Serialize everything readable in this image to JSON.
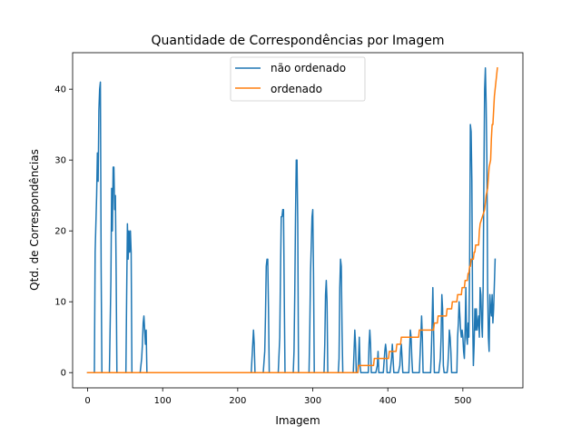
{
  "chart_data": {
    "type": "line",
    "title": "Quantidade de Correspondências por Imagem",
    "xlabel": "Imagem",
    "ylabel": "Qtd. de Correspondências",
    "xlim": [
      -20,
      580
    ],
    "ylim": [
      -2.15,
      45.15
    ],
    "xticks": [
      0,
      100,
      200,
      300,
      400,
      500
    ],
    "yticks": [
      0,
      10,
      20,
      30,
      40
    ],
    "grid": false,
    "legend_position": "upper center",
    "series": [
      {
        "name": "não ordenado",
        "color": "#1f77b4",
        "points": [
          [
            0,
            0
          ],
          [
            9,
            0
          ],
          [
            10,
            17
          ],
          [
            12,
            25
          ],
          [
            13,
            31
          ],
          [
            14,
            27
          ],
          [
            15,
            37
          ],
          [
            16,
            40
          ],
          [
            17,
            41
          ],
          [
            18,
            15
          ],
          [
            19,
            0
          ],
          [
            29,
            0
          ],
          [
            31,
            13
          ],
          [
            32,
            26
          ],
          [
            33,
            20
          ],
          [
            34,
            29
          ],
          [
            35,
            29
          ],
          [
            36,
            23
          ],
          [
            37,
            25
          ],
          [
            38,
            14
          ],
          [
            39,
            0
          ],
          [
            51,
            0
          ],
          [
            52,
            11
          ],
          [
            53,
            21
          ],
          [
            54,
            16
          ],
          [
            55,
            20
          ],
          [
            56,
            17
          ],
          [
            57,
            20
          ],
          [
            58,
            17
          ],
          [
            59,
            0
          ],
          [
            70,
            0
          ],
          [
            72,
            2
          ],
          [
            73,
            4
          ],
          [
            74,
            7
          ],
          [
            75,
            8
          ],
          [
            76,
            6
          ],
          [
            77,
            4
          ],
          [
            78,
            6
          ],
          [
            79,
            0
          ],
          [
            218,
            0
          ],
          [
            220,
            4
          ],
          [
            221,
            6
          ],
          [
            222,
            4
          ],
          [
            223,
            0
          ],
          [
            234,
            0
          ],
          [
            236,
            3
          ],
          [
            237,
            8
          ],
          [
            238,
            15
          ],
          [
            239,
            16
          ],
          [
            240,
            16
          ],
          [
            241,
            9
          ],
          [
            242,
            0
          ],
          [
            254,
            0
          ],
          [
            256,
            5
          ],
          [
            257,
            14
          ],
          [
            258,
            22
          ],
          [
            259,
            22
          ],
          [
            260,
            23
          ],
          [
            261,
            23
          ],
          [
            262,
            11
          ],
          [
            263,
            0
          ],
          [
            274,
            0
          ],
          [
            275,
            3
          ],
          [
            276,
            11
          ],
          [
            277,
            22
          ],
          [
            278,
            30
          ],
          [
            279,
            30
          ],
          [
            280,
            21
          ],
          [
            281,
            0
          ],
          [
            295,
            0
          ],
          [
            296,
            6
          ],
          [
            297,
            14
          ],
          [
            298,
            18
          ],
          [
            299,
            22
          ],
          [
            300,
            23
          ],
          [
            301,
            14
          ],
          [
            302,
            0
          ],
          [
            315,
            0
          ],
          [
            316,
            4
          ],
          [
            317,
            11
          ],
          [
            318,
            13
          ],
          [
            319,
            10
          ],
          [
            320,
            0
          ],
          [
            334,
            0
          ],
          [
            335,
            2
          ],
          [
            336,
            12
          ],
          [
            337,
            16
          ],
          [
            338,
            15
          ],
          [
            339,
            6
          ],
          [
            340,
            0
          ],
          [
            354,
            0
          ],
          [
            355,
            3
          ],
          [
            356,
            6
          ],
          [
            357,
            4
          ],
          [
            358,
            0
          ],
          [
            360,
            0
          ],
          [
            361,
            2
          ],
          [
            362,
            5
          ],
          [
            363,
            1
          ],
          [
            364,
            0
          ],
          [
            374,
            0
          ],
          [
            375,
            4
          ],
          [
            376,
            6
          ],
          [
            377,
            4
          ],
          [
            378,
            0
          ],
          [
            384,
            0
          ],
          [
            386,
            1
          ],
          [
            387,
            3
          ],
          [
            388,
            0
          ],
          [
            394,
            0
          ],
          [
            396,
            3
          ],
          [
            397,
            4
          ],
          [
            398,
            3
          ],
          [
            399,
            0
          ],
          [
            403,
            0
          ],
          [
            405,
            2
          ],
          [
            406,
            4
          ],
          [
            407,
            2
          ],
          [
            408,
            0
          ],
          [
            414,
            0
          ],
          [
            416,
            1
          ],
          [
            417,
            3
          ],
          [
            418,
            4
          ],
          [
            419,
            2
          ],
          [
            420,
            0
          ],
          [
            428,
            0
          ],
          [
            429,
            3
          ],
          [
            430,
            6
          ],
          [
            431,
            5
          ],
          [
            432,
            2
          ],
          [
            433,
            0
          ],
          [
            442,
            0
          ],
          [
            444,
            5
          ],
          [
            445,
            8
          ],
          [
            446,
            5
          ],
          [
            447,
            0
          ],
          [
            457,
            0
          ],
          [
            458,
            3
          ],
          [
            459,
            7
          ],
          [
            460,
            12
          ],
          [
            461,
            6
          ],
          [
            462,
            0
          ],
          [
            468,
            0
          ],
          [
            470,
            2
          ],
          [
            471,
            5
          ],
          [
            472,
            11
          ],
          [
            473,
            9
          ],
          [
            474,
            1
          ],
          [
            475,
            0
          ],
          [
            479,
            0
          ],
          [
            480,
            1
          ],
          [
            481,
            3
          ],
          [
            482,
            6
          ],
          [
            483,
            5
          ],
          [
            484,
            3
          ],
          [
            485,
            0
          ],
          [
            492,
            0
          ],
          [
            493,
            5
          ],
          [
            494,
            7
          ],
          [
            495,
            10
          ],
          [
            496,
            8
          ],
          [
            497,
            6
          ],
          [
            498,
            5
          ],
          [
            499,
            6
          ],
          [
            500,
            5
          ],
          [
            501,
            3
          ],
          [
            502,
            2
          ],
          [
            503,
            6
          ],
          [
            504,
            12
          ],
          [
            505,
            5
          ],
          [
            506,
            4
          ],
          [
            507,
            7
          ],
          [
            508,
            5
          ],
          [
            509,
            15
          ],
          [
            510,
            35
          ],
          [
            511,
            34
          ],
          [
            512,
            27
          ],
          [
            513,
            8
          ],
          [
            514,
            1
          ],
          [
            515,
            4
          ],
          [
            516,
            9
          ],
          [
            517,
            6
          ],
          [
            518,
            9
          ],
          [
            519,
            6
          ],
          [
            520,
            7
          ],
          [
            521,
            8
          ],
          [
            522,
            5
          ],
          [
            523,
            12
          ],
          [
            524,
            11
          ],
          [
            525,
            7
          ],
          [
            526,
            5
          ],
          [
            527,
            12
          ],
          [
            528,
            27
          ],
          [
            529,
            40
          ],
          [
            530,
            43
          ],
          [
            531,
            38
          ],
          [
            532,
            30
          ],
          [
            533,
            12
          ],
          [
            534,
            5
          ],
          [
            535,
            3
          ],
          [
            536,
            11
          ],
          [
            537,
            9
          ],
          [
            538,
            8
          ],
          [
            539,
            11
          ],
          [
            540,
            7
          ],
          [
            541,
            9
          ],
          [
            543,
            16
          ]
        ]
      },
      {
        "name": "ordenado",
        "color": "#ff7f0e",
        "points": [
          [
            0,
            0
          ],
          [
            360,
            0
          ],
          [
            361,
            1
          ],
          [
            381,
            1
          ],
          [
            382,
            2
          ],
          [
            401,
            2
          ],
          [
            402,
            3
          ],
          [
            411,
            3
          ],
          [
            412,
            4
          ],
          [
            417,
            4
          ],
          [
            418,
            5
          ],
          [
            441,
            5
          ],
          [
            442,
            6
          ],
          [
            461,
            6
          ],
          [
            462,
            7
          ],
          [
            466,
            7
          ],
          [
            467,
            8
          ],
          [
            478,
            8
          ],
          [
            479,
            9
          ],
          [
            485,
            9
          ],
          [
            486,
            10
          ],
          [
            492,
            10
          ],
          [
            493,
            11
          ],
          [
            498,
            11
          ],
          [
            499,
            12
          ],
          [
            502,
            12
          ],
          [
            503,
            13
          ],
          [
            506,
            13
          ],
          [
            507,
            14
          ],
          [
            508,
            14
          ],
          [
            509,
            15
          ],
          [
            510,
            15
          ],
          [
            511,
            16
          ],
          [
            514,
            16
          ],
          [
            515,
            17
          ],
          [
            516,
            17
          ],
          [
            517,
            18
          ],
          [
            521,
            18
          ],
          [
            522,
            20
          ],
          [
            523,
            21
          ],
          [
            526,
            22
          ],
          [
            529,
            23
          ],
          [
            531,
            25
          ],
          [
            533,
            26
          ],
          [
            535,
            29
          ],
          [
            537,
            30
          ],
          [
            538,
            33
          ],
          [
            539,
            35
          ],
          [
            540,
            35
          ],
          [
            541,
            37
          ],
          [
            542,
            39
          ],
          [
            543,
            40
          ],
          [
            544,
            41
          ],
          [
            545,
            42
          ],
          [
            546,
            43
          ]
        ]
      }
    ]
  }
}
